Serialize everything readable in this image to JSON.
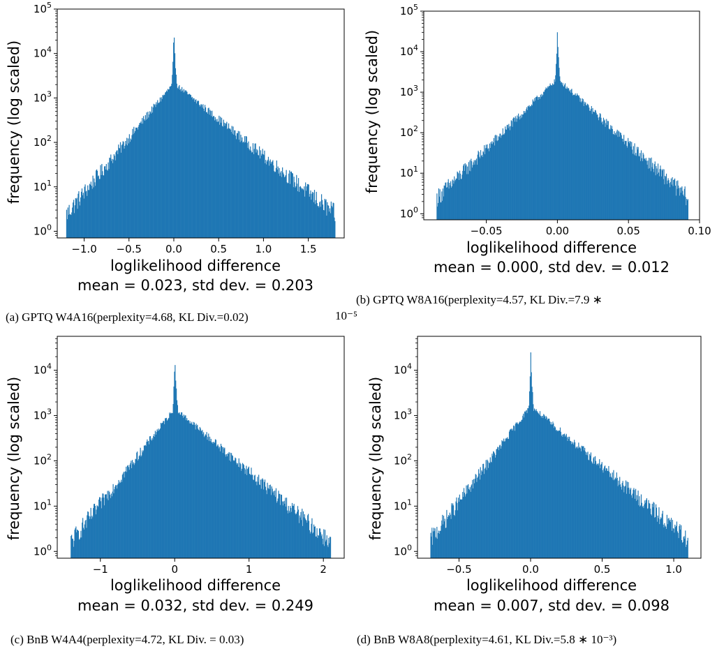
{
  "chart_data": [
    {
      "type": "bar",
      "subtype": "histogram",
      "xlabel": "loglikelihood difference",
      "ylabel": "frequency (log scaled)",
      "stats_text": "mean = 0.023, std dev. = 0.203",
      "caption": "(a) GPTQ W4A16(perplexity=4.68, KL Div.=0.02)",
      "caption_cont": "",
      "xlim": [
        -1.3,
        1.9
      ],
      "ylim_log10": [
        -0.15,
        5
      ],
      "y_scale": "log",
      "xticks": [
        -1.0,
        -0.5,
        0.0,
        0.5,
        1.0,
        1.5
      ],
      "xtick_labels": [
        "−1.0",
        "−0.5",
        "0.0",
        "0.5",
        "1.0",
        "1.5"
      ],
      "yticks_exp": [
        0,
        1,
        2,
        3,
        4,
        5
      ],
      "data_range": [
        -1.2,
        1.8
      ],
      "peak_x": 0.0,
      "peak_count": 60000,
      "mean": 0.023,
      "std": 0.203,
      "color": "#1f77b4"
    },
    {
      "type": "bar",
      "subtype": "histogram",
      "xlabel": "loglikelihood difference",
      "ylabel": "frequency (log scaled)",
      "stats_text": "mean = 0.000, std dev. = 0.012",
      "caption": "(b) GPTQ W8A16(perplexity=4.57, KL Div.=7.9 ∗",
      "caption_cont": "10⁻⁵",
      "xlim": [
        -0.094,
        0.1
      ],
      "ylim_log10": [
        -0.15,
        5
      ],
      "y_scale": "log",
      "xticks": [
        -0.05,
        0.0,
        0.05,
        0.1
      ],
      "xtick_labels": [
        "−0.05",
        "0.00",
        "0.05",
        "0.10"
      ],
      "yticks_exp": [
        0,
        1,
        2,
        3,
        4,
        5
      ],
      "data_range": [
        -0.085,
        0.092
      ],
      "peak_x": 0.0,
      "peak_count": 60000,
      "mean": 0.0,
      "std": 0.012,
      "color": "#1f77b4"
    },
    {
      "type": "bar",
      "subtype": "histogram",
      "xlabel": "loglikelihood difference",
      "ylabel": "frequency (log scaled)",
      "stats_text": "mean = 0.032, std dev. = 0.249",
      "caption": "(c) BnB W4A4(perplexity=4.72, KL Div. = 0.03)",
      "caption_cont": "",
      "xlim": [
        -1.58,
        2.28
      ],
      "ylim_log10": [
        -0.15,
        4.75
      ],
      "y_scale": "log",
      "xticks": [
        -1,
        0,
        1,
        2
      ],
      "xtick_labels": [
        "−1",
        "0",
        "1",
        "2"
      ],
      "yticks_exp": [
        0,
        1,
        2,
        3,
        4
      ],
      "data_range": [
        -1.4,
        2.1
      ],
      "peak_x": 0.0,
      "peak_count": 40000,
      "mean": 0.032,
      "std": 0.249,
      "color": "#1f77b4"
    },
    {
      "type": "bar",
      "subtype": "histogram",
      "xlabel": "loglikelihood difference",
      "ylabel": "frequency (log scaled)",
      "stats_text": "mean = 0.007, std dev. = 0.098",
      "caption": "(d) BnB W8A8(perplexity=4.61, KL Div.=5.8 ∗ 10⁻³)",
      "caption_cont": "",
      "xlim": [
        -0.79,
        1.19
      ],
      "ylim_log10": [
        -0.15,
        4.75
      ],
      "y_scale": "log",
      "xticks": [
        -0.5,
        0.0,
        0.5,
        1.0
      ],
      "xtick_labels": [
        "−0.5",
        "0.0",
        "0.5",
        "1.0"
      ],
      "yticks_exp": [
        0,
        1,
        2,
        3,
        4
      ],
      "data_range": [
        -0.7,
        1.1
      ],
      "peak_x": 0.0,
      "peak_count": 45000,
      "mean": 0.007,
      "std": 0.098,
      "color": "#1f77b4"
    }
  ]
}
